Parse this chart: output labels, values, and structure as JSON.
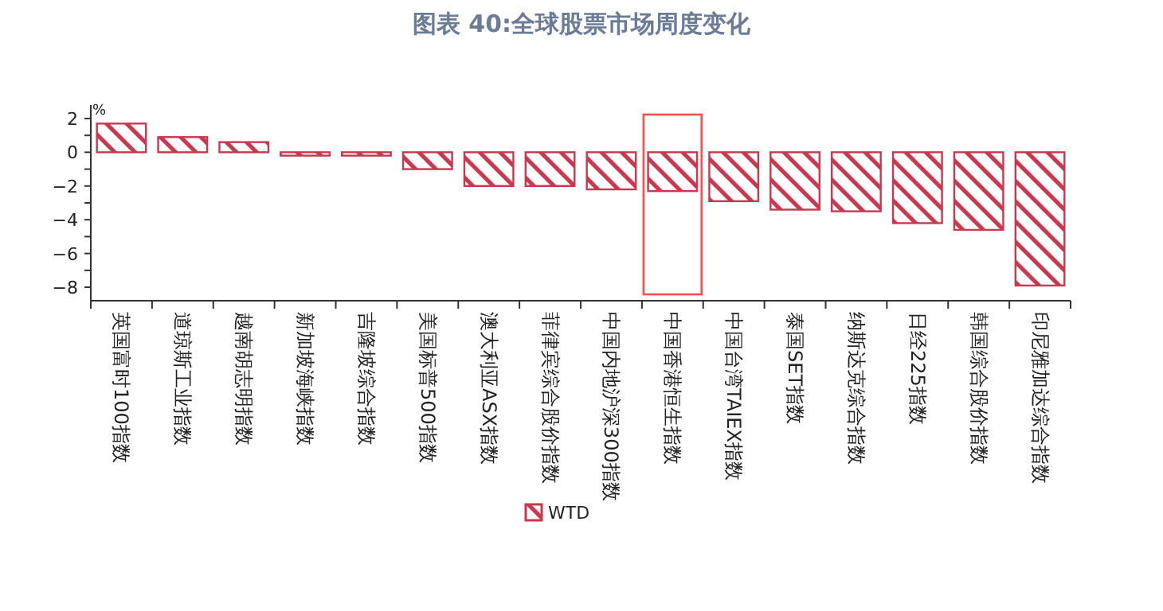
{
  "chart_data": {
    "type": "bar",
    "title": "图表 40:全球股票市场周度变化",
    "ylabel": "%",
    "categories": [
      "英国富时100指数",
      "道琼斯工业指数",
      "越南胡志明指数",
      "新加坡海峡指数",
      "吉隆坡综合指数",
      "美国标普500指数",
      "澳大利亚ASX指数",
      "菲律宾综合股价指数",
      "中国内地沪深300指数",
      "中国香港恒生指数",
      "中国台湾TAIEX指数",
      "泰国SET指数",
      "纳斯达克综合指数",
      "日经225指数",
      "韩国综合股价指数",
      "印尼雅加达综合指数"
    ],
    "series": [
      {
        "name": "WTD",
        "color": "#c8384f",
        "values": [
          1.7,
          0.9,
          0.6,
          -0.2,
          -0.2,
          -1.0,
          -2.0,
          -2.0,
          -2.2,
          -2.3,
          -2.9,
          -3.4,
          -3.5,
          -4.2,
          -4.6,
          -7.9
        ]
      }
    ],
    "ylim": [
      -8.8,
      2.8
    ],
    "yticks": [
      -8,
      {
        "value": -7,
        "label": null
      },
      -6,
      {
        "value": -5,
        "label": null
      },
      -4,
      {
        "value": -3,
        "label": null
      },
      -2,
      {
        "value": -1,
        "label": null
      },
      0,
      {
        "value": 1,
        "label": null
      },
      2
    ],
    "legend": "bottom",
    "grid": false
  }
}
